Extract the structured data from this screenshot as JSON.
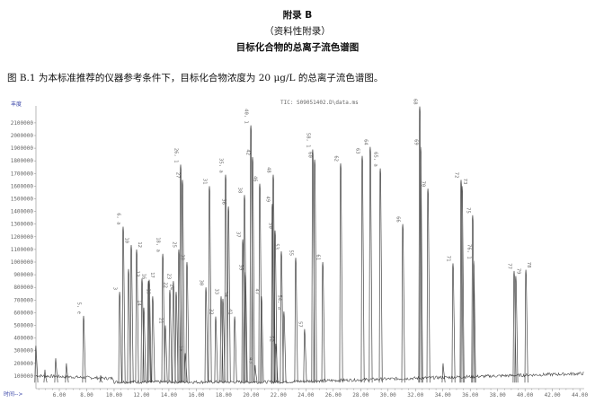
{
  "heading": {
    "appendix": "附录 B",
    "nature": "（资料性附录）",
    "title": "目标化合物的总离子流色谱图"
  },
  "paragraph": "图 B.1 为本标准推荐的仪器参考条件下，目标化合物浓度为 20 μg/L 的总离子流色谱图。",
  "chart_data": {
    "type": "line",
    "title": "TIC: S09051402.D\\data.ms",
    "xlabel": "时间-->",
    "ylabel": "丰度",
    "xlim": [
      4.3,
      44.3
    ],
    "ylim": [
      0,
      2200000
    ],
    "xticks": [
      "6.00",
      "8.00",
      "10.00",
      "12.00",
      "14.00",
      "16.00",
      "18.00",
      "20.00",
      "22.00",
      "24.00",
      "26.00",
      "28.00",
      "30.00",
      "32.00",
      "34.00",
      "36.00",
      "38.00",
      "40.00",
      "42.00",
      "44.00"
    ],
    "yticks": [
      "100000",
      "200000",
      "300000",
      "400000",
      "500000",
      "600000",
      "700000",
      "800000",
      "900000",
      "1000000",
      "1100000",
      "1200000",
      "1300000",
      "1400000",
      "1500000",
      "1600000",
      "1700000",
      "1800000",
      "1900000",
      "2000000",
      "2100000"
    ],
    "grid": false,
    "line_color": "#444444",
    "baseline": 80000,
    "peaks": [
      {
        "t": 4.29,
        "y": 340000,
        "label": ""
      },
      {
        "t": 4.95,
        "y": 150000,
        "label": ""
      },
      {
        "t": 5.74,
        "y": 240000,
        "label": ""
      },
      {
        "t": 6.52,
        "y": 200000,
        "label": ""
      },
      {
        "t": 7.77,
        "y": 575000,
        "label": "5, e"
      },
      {
        "t": 9.02,
        "y": 105000,
        "label": ""
      },
      {
        "t": 10.4,
        "y": 765000,
        "label": "3"
      },
      {
        "t": 10.66,
        "y": 1280000,
        "label": "6, a"
      },
      {
        "t": 11.05,
        "y": 945000,
        "label": ""
      },
      {
        "t": 11.25,
        "y": 1135000,
        "label": "10"
      },
      {
        "t": 11.64,
        "y": 1100000,
        "label": "12"
      },
      {
        "t": 12.04,
        "y": 870000,
        "label": "13"
      },
      {
        "t": 12.17,
        "y": 640000,
        "label": "14"
      },
      {
        "t": 12.5,
        "y": 850000,
        "label": "16"
      },
      {
        "t": 12.56,
        "y": 860000,
        "label": "17"
      },
      {
        "t": 12.82,
        "y": 730000,
        "label": "19"
      },
      {
        "t": 13.55,
        "y": 1065000,
        "label": "18, a"
      },
      {
        "t": 13.74,
        "y": 500000,
        "label": "21"
      },
      {
        "t": 14.07,
        "y": 780000,
        "label": "22"
      },
      {
        "t": 14.33,
        "y": 850000,
        "label": "23"
      },
      {
        "t": 14.53,
        "y": 765000,
        "label": "24"
      },
      {
        "t": 14.73,
        "y": 1100000,
        "label": "25"
      },
      {
        "t": 14.86,
        "y": 1770000,
        "label": "26, 1"
      },
      {
        "t": 14.99,
        "y": 1650000,
        "label": "27"
      },
      {
        "t": 15.19,
        "y": 280000,
        "label": "29"
      },
      {
        "t": 15.32,
        "y": 1000000,
        "label": "28"
      },
      {
        "t": 16.7,
        "y": 800000,
        "label": "30"
      },
      {
        "t": 16.96,
        "y": 1600000,
        "label": "31"
      },
      {
        "t": 17.42,
        "y": 570000,
        "label": "32"
      },
      {
        "t": 17.81,
        "y": 730000,
        "label": "33"
      },
      {
        "t": 17.94,
        "y": 710000,
        "label": "34"
      },
      {
        "t": 18.14,
        "y": 1690000,
        "label": "35, a"
      },
      {
        "t": 18.34,
        "y": 1440000,
        "label": "36"
      },
      {
        "t": 18.8,
        "y": 570000,
        "label": "41"
      },
      {
        "t": 19.39,
        "y": 1180000,
        "label": "37"
      },
      {
        "t": 19.52,
        "y": 1530000,
        "label": "38"
      },
      {
        "t": 19.58,
        "y": 920000,
        "label": "39"
      },
      {
        "t": 19.98,
        "y": 2080000,
        "label": "40, 1"
      },
      {
        "t": 20.11,
        "y": 1830000,
        "label": "42"
      },
      {
        "t": 20.3,
        "y": 185000,
        "label": "43"
      },
      {
        "t": 20.63,
        "y": 1620000,
        "label": "46"
      },
      {
        "t": 20.76,
        "y": 730000,
        "label": "47"
      },
      {
        "t": 21.55,
        "y": 1460000,
        "label": "49"
      },
      {
        "t": 21.62,
        "y": 1690000,
        "label": "48"
      },
      {
        "t": 21.75,
        "y": 1250000,
        "label": "50"
      },
      {
        "t": 21.81,
        "y": 355000,
        "label": "52"
      },
      {
        "t": 22.21,
        "y": 1085000,
        "label": "53"
      },
      {
        "t": 22.4,
        "y": 610000,
        "label": "54, a"
      },
      {
        "t": 23.26,
        "y": 1035000,
        "label": "55"
      },
      {
        "t": 23.91,
        "y": 470000,
        "label": "57"
      },
      {
        "t": 24.5,
        "y": 1890000,
        "label": "58, 1"
      },
      {
        "t": 24.64,
        "y": 1810000,
        "label": "60"
      },
      {
        "t": 25.23,
        "y": 1000000,
        "label": "61"
      },
      {
        "t": 26.54,
        "y": 1780000,
        "label": "62"
      },
      {
        "t": 28.11,
        "y": 1840000,
        "label": "63"
      },
      {
        "t": 28.7,
        "y": 1910000,
        "label": "64"
      },
      {
        "t": 29.43,
        "y": 1740000,
        "label": "65, a"
      },
      {
        "t": 31.07,
        "y": 1300000,
        "label": "66"
      },
      {
        "t": 32.31,
        "y": 2230000,
        "label": "68"
      },
      {
        "t": 32.38,
        "y": 1910000,
        "label": "69"
      },
      {
        "t": 32.91,
        "y": 1580000,
        "label": "70"
      },
      {
        "t": 34.02,
        "y": 200000,
        "label": ""
      },
      {
        "t": 34.74,
        "y": 990000,
        "label": "71"
      },
      {
        "t": 35.33,
        "y": 1650000,
        "label": "72"
      },
      {
        "t": 35.4,
        "y": 1600000,
        "label": "73"
      },
      {
        "t": 36.18,
        "y": 1370000,
        "label": "75"
      },
      {
        "t": 36.25,
        "y": 1010000,
        "label": "76, 1"
      },
      {
        "t": 39.2,
        "y": 930000,
        "label": "77"
      },
      {
        "t": 39.33,
        "y": 890000,
        "label": "79"
      },
      {
        "t": 40.06,
        "y": 940000,
        "label": "78"
      }
    ]
  }
}
